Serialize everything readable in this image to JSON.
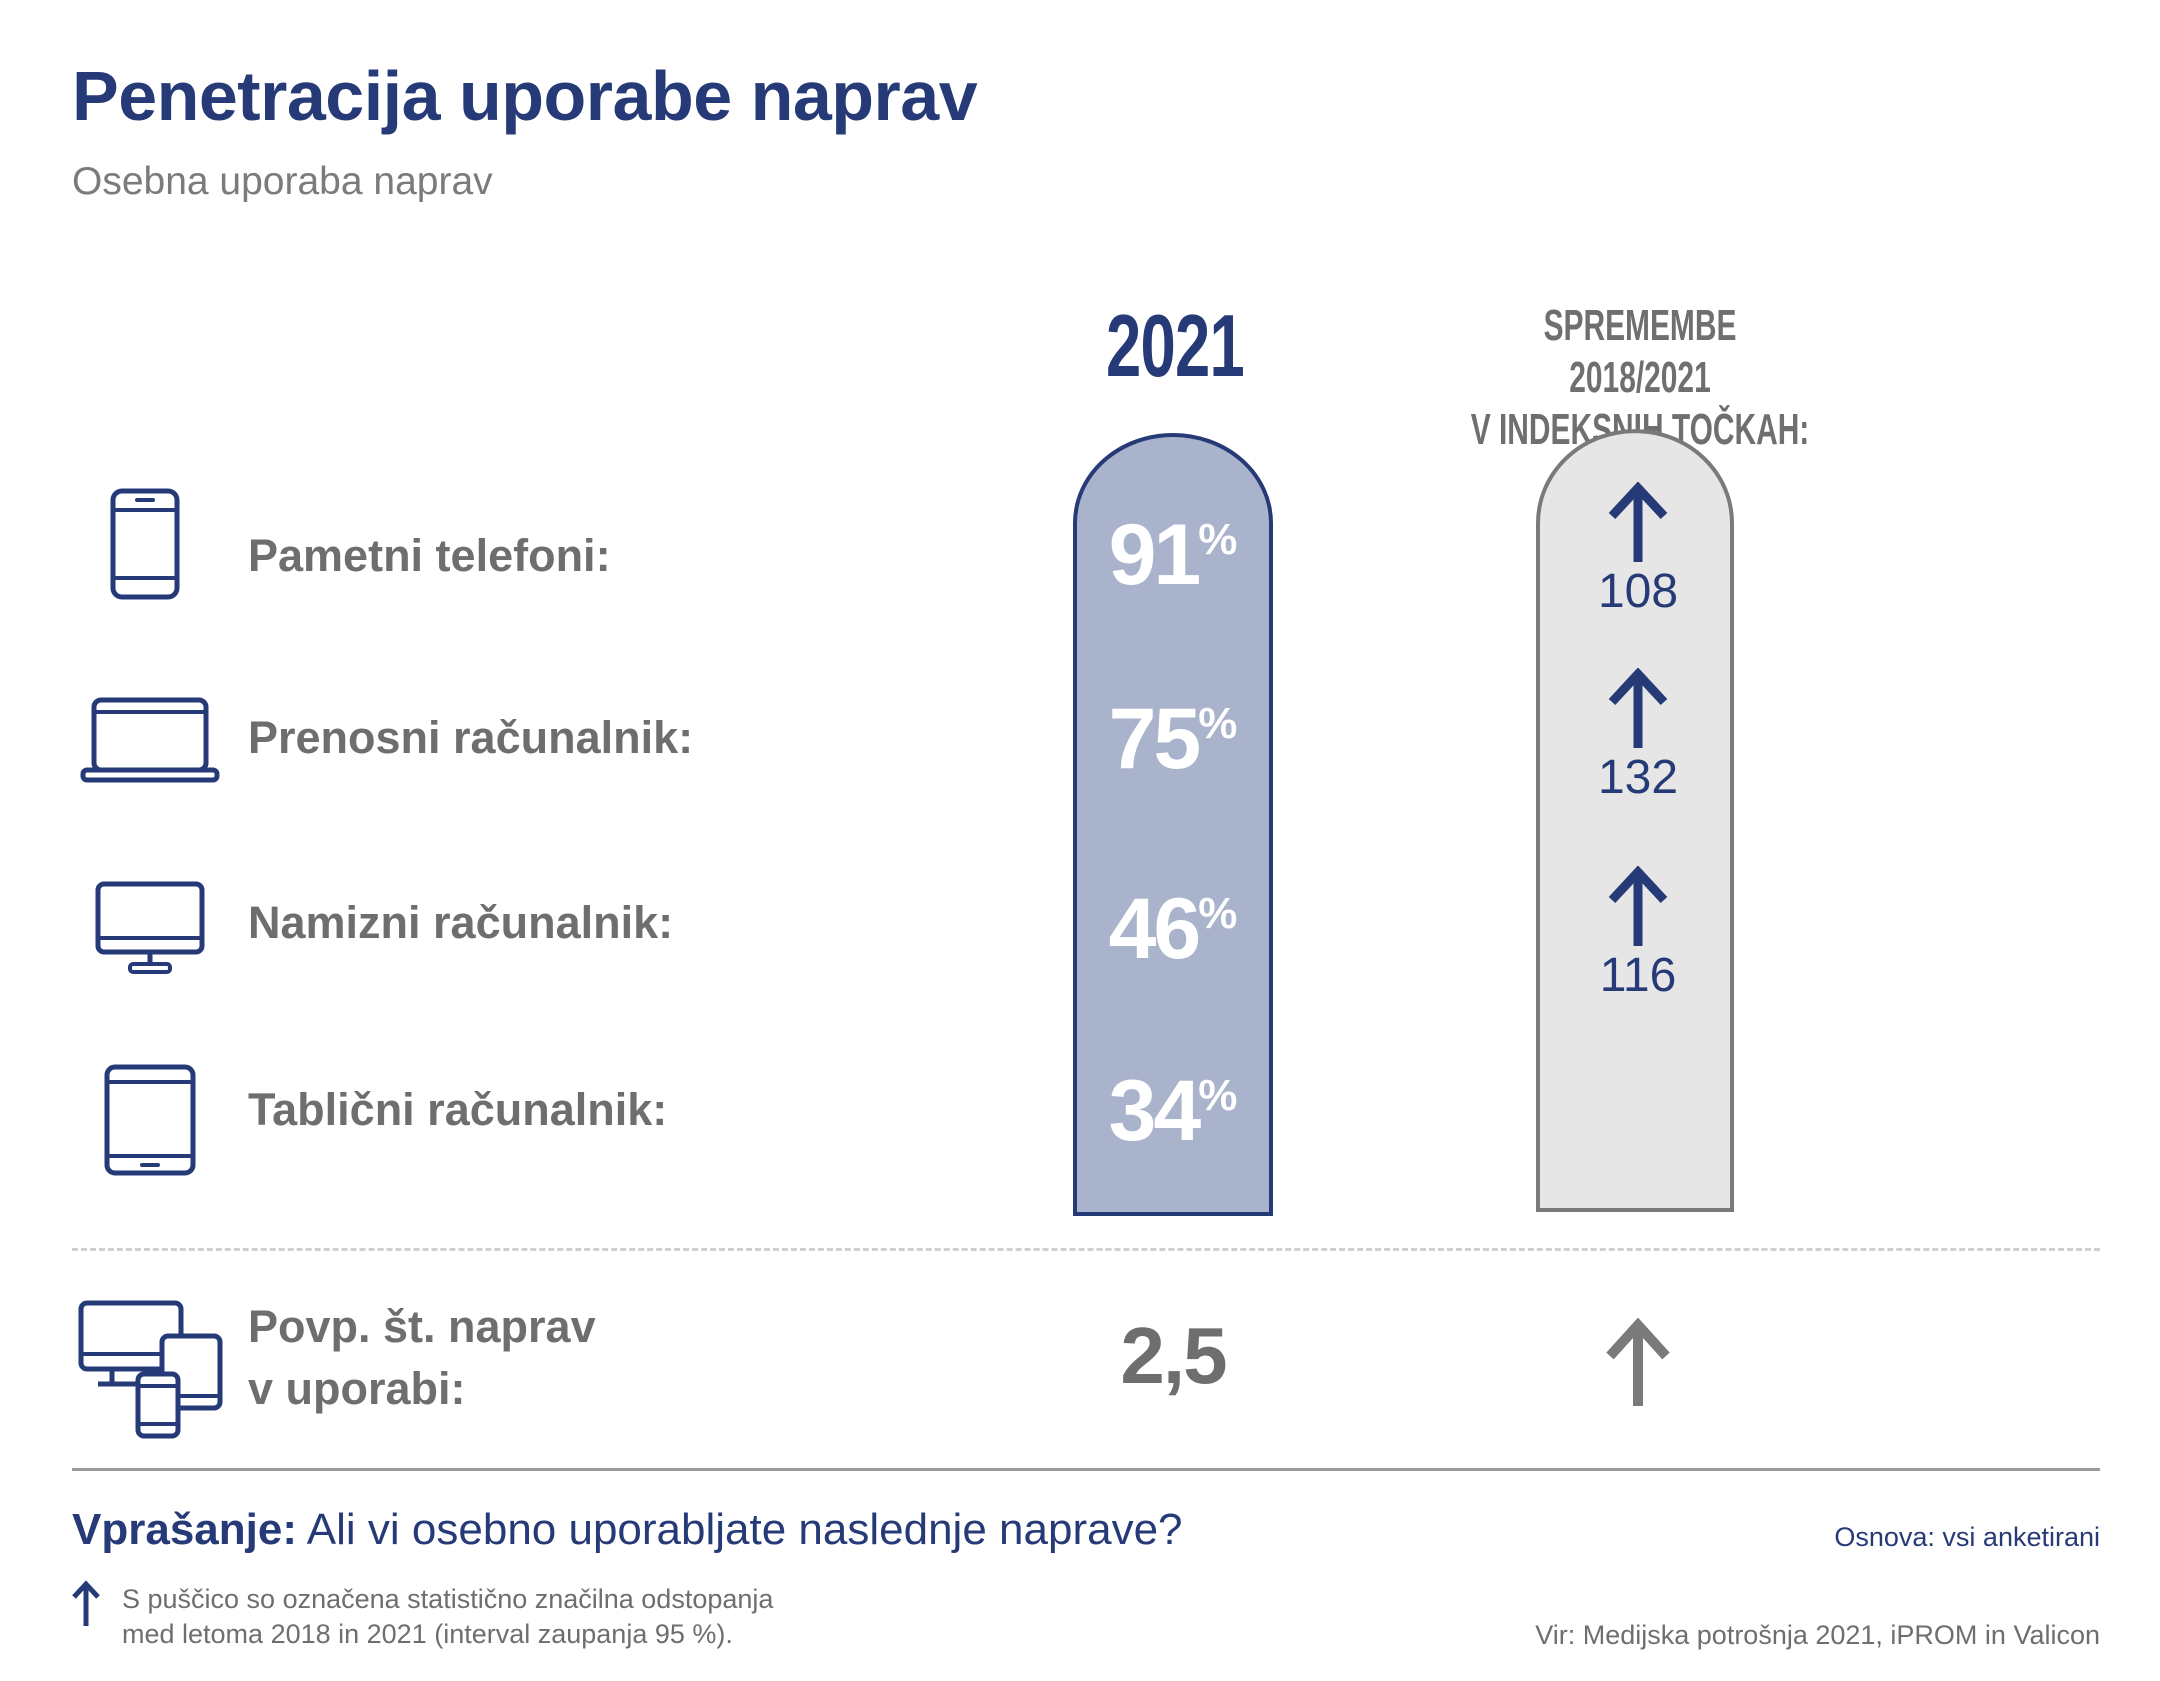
{
  "header": {
    "title": "Penetracija uporabe naprav",
    "subtitle": "Osebna uporaba naprav"
  },
  "columns": {
    "year": "2021",
    "change_line1": "SPREMEMBE 2018/2021",
    "change_line2": "V INDEKSNIH TOČKAH:"
  },
  "chart_data": {
    "type": "table",
    "categories": [
      "Pametni telefoni:",
      "Prenosni računalnik:",
      "Namizni računalnik:",
      "Tablični računalnik:"
    ],
    "series": [
      {
        "name": "2021",
        "values": [
          91,
          75,
          46,
          34
        ],
        "unit": "%"
      },
      {
        "name": "SPREMEMBE 2018/2021 V INDEKSNIH TOČKAH:",
        "values": [
          108,
          132,
          116,
          null
        ]
      }
    ],
    "significant_increase": [
      true,
      true,
      true,
      false
    ],
    "average": {
      "label": "Povp. št. naprav v uporabi:",
      "value": "2,5",
      "significant_increase": true
    }
  },
  "rows": [
    {
      "label": "Pametni telefoni:",
      "pct": "91",
      "unit": "%",
      "change": "108",
      "icon": "smartphone-icon"
    },
    {
      "label": "Prenosni računalnik:",
      "pct": "75",
      "unit": "%",
      "change": "132",
      "icon": "laptop-icon"
    },
    {
      "label": "Namizni računalnik:",
      "pct": "46",
      "unit": "%",
      "change": "116",
      "icon": "desktop-icon"
    },
    {
      "label": "Tablični računalnik:",
      "pct": "34",
      "unit": "%",
      "change": "",
      "icon": "tablet-icon"
    }
  ],
  "average": {
    "label_line1": "Povp. št. naprav",
    "label_line2": "v uporabi:",
    "value": "2,5",
    "icon": "devices-icon"
  },
  "footer": {
    "question_label": "Vprašanje:",
    "question_text": " Ali vi osebno uporabljate naslednje naprave?",
    "base": "Osnova: vsi anketirani",
    "note_line1": "S puščico so označena statistično značilna odstopanja",
    "note_line2": "med letoma 2018 in 2021 (interval zaupanja 95 %).",
    "source": "Vir: Medijska potrošnja 2021, iPROM in Valicon"
  },
  "colors": {
    "navy": "#263a78",
    "pill_blue": "#a9b3cb",
    "pill_grey": "#e6e6e6",
    "grey_text": "#6e6e6e"
  }
}
